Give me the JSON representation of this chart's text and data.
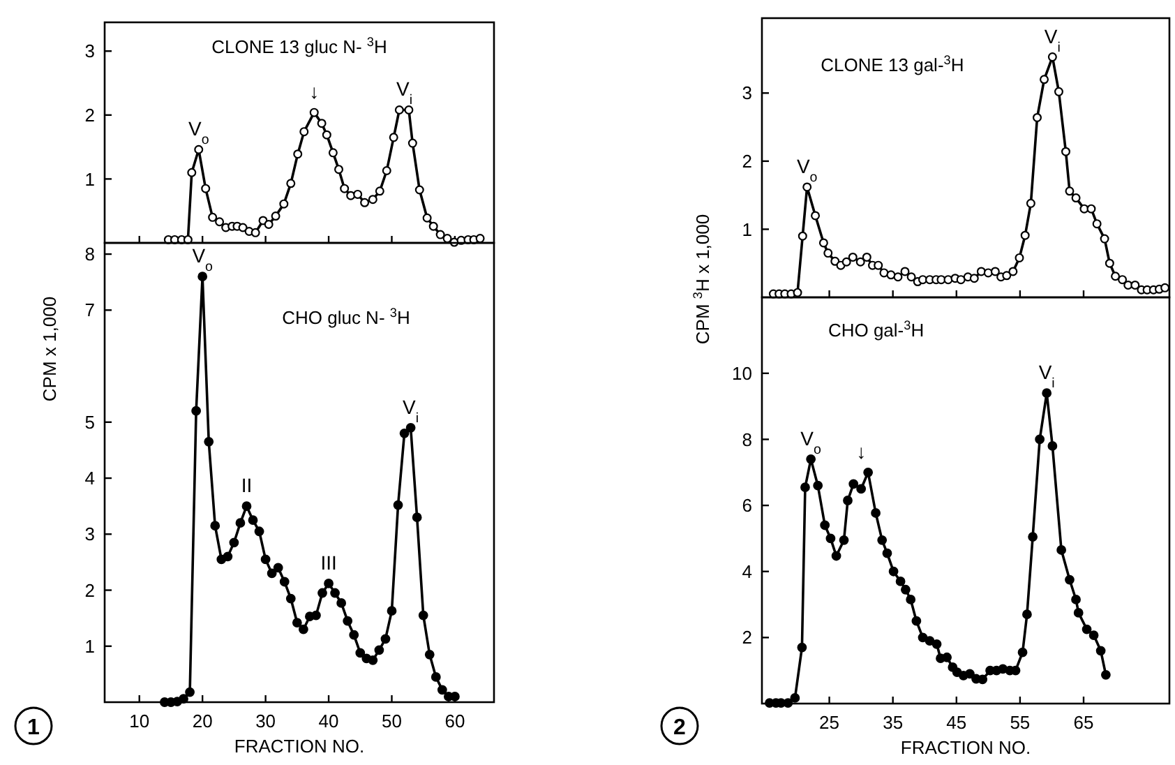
{
  "chart_data": [
    {
      "type": "line",
      "title": "CLONE 13 gluc N- $^{3}$H",
      "marker": "circle",
      "tick_labels": "y",
      "xlim": [
        4.5,
        66.2
      ],
      "xticks": [
        10,
        20,
        30,
        40,
        50,
        60
      ],
      "ylim": [
        0,
        3.45
      ],
      "yticks": [
        1,
        2,
        3
      ],
      "series": [
        {
          "color": "#000000",
          "x": [
            14.6,
            15.6,
            16.7,
            17.7,
            18.3,
            19.4,
            20.5,
            21.6,
            22.7,
            23.7,
            24.7,
            25.5,
            26.4,
            27.4,
            28.4,
            29.6,
            30.5,
            31.6,
            32.9,
            34,
            35.1,
            36.1,
            37.7,
            38.9,
            39.7,
            40.7,
            41.6,
            42.5,
            43.5,
            44.6,
            45.7,
            47,
            48.1,
            49.2,
            50.3,
            51.2,
            52.7,
            53.3,
            54.4,
            55.6,
            56.6,
            57.7,
            58.8,
            59.9,
            61,
            62.1,
            63,
            64
          ],
          "values": [
            0.05,
            0.05,
            0.05,
            0.05,
            1.1,
            1.46,
            0.85,
            0.4,
            0.33,
            0.24,
            0.26,
            0.26,
            0.24,
            0.18,
            0.16,
            0.35,
            0.29,
            0.42,
            0.61,
            0.93,
            1.39,
            1.74,
            2.04,
            1.87,
            1.69,
            1.41,
            1.15,
            0.85,
            0.74,
            0.76,
            0.63,
            0.68,
            0.81,
            1.13,
            1.65,
            2.08,
            2.08,
            1.56,
            0.83,
            0.39,
            0.26,
            0.13,
            0.07,
            0.01,
            0.04,
            0.05,
            0.05,
            0.07
          ]
        }
      ],
      "annotations": [
        {
          "text": "V$_{o}$",
          "x": 19.4,
          "y": 1.46
        },
        {
          "text": "↓",
          "x": 37.7,
          "y": 2.04
        },
        {
          "text": "V$_{i}$",
          "x": 52,
          "y": 2.08
        }
      ]
    },
    {
      "type": "line",
      "title": "CHO gluc N- $^{3}$H",
      "xlabel": "FRACTION NO.",
      "ylabel": "CPM x 1,000",
      "marker": "circle",
      "xlim": [
        4.5,
        66.2
      ],
      "xticks": [
        10,
        20,
        30,
        40,
        50,
        60
      ],
      "ylim": [
        0,
        8.2
      ],
      "yticks": [
        1,
        2,
        3,
        4,
        5,
        7,
        8
      ],
      "series": [
        {
          "color": "#000000",
          "x": [
            14,
            15,
            16,
            17,
            18,
            19,
            20,
            21,
            22,
            23,
            24,
            25,
            26,
            27,
            28,
            29,
            30,
            31,
            32,
            33,
            34,
            35,
            36,
            37,
            38,
            39,
            40,
            41,
            42,
            43,
            44,
            45,
            46,
            47,
            48,
            49,
            50,
            51,
            52,
            53,
            54,
            55,
            56,
            57,
            58,
            59,
            60
          ],
          "values": [
            0,
            0,
            0.01,
            0.06,
            0.18,
            5.2,
            7.6,
            4.65,
            3.15,
            2.55,
            2.6,
            2.85,
            3.2,
            3.5,
            3.25,
            3.05,
            2.55,
            2.3,
            2.4,
            2.15,
            1.85,
            1.42,
            1.3,
            1.53,
            1.55,
            1.95,
            2.12,
            1.95,
            1.77,
            1.45,
            1.2,
            0.88,
            0.78,
            0.75,
            0.93,
            1.13,
            1.63,
            3.52,
            4.8,
            4.9,
            3.3,
            1.55,
            0.85,
            0.45,
            0.22,
            0.1,
            0.1
          ]
        }
      ],
      "annotations": [
        {
          "text": "V$_{o}$",
          "x": 20,
          "y": 7.6
        },
        {
          "text": "II",
          "x": 27,
          "y": 3.5
        },
        {
          "text": "III",
          "x": 40,
          "y": 2.12
        },
        {
          "text": "V$_{i}$",
          "x": 53,
          "y": 4.9
        },
        "1"
      ]
    },
    {
      "type": "line",
      "title": "CLONE 13 gal-$^{3}$H",
      "marker": "circle",
      "tick_labels": "y",
      "xlim": [
        14.4,
        78.5
      ],
      "xticks": [
        25,
        35,
        45,
        55,
        65
      ],
      "ylim": [
        0,
        4.1
      ],
      "yticks": [
        1,
        2,
        3
      ],
      "series": [
        {
          "color": "#000000",
          "x": [
            16.2,
            17.1,
            18,
            19,
            20,
            20.8,
            21.5,
            22.8,
            24.1,
            24.8,
            25.9,
            26.8,
            27.7,
            28.7,
            29.9,
            30.9,
            31.8,
            32.7,
            33.6,
            34.7,
            35.8,
            36.9,
            37.9,
            38.9,
            39.7,
            40.8,
            41.8,
            42.6,
            43.7,
            44.8,
            45.7,
            46.8,
            47.8,
            48.9,
            50,
            51.1,
            52,
            52.9,
            53.9,
            54.9,
            55.8,
            56.7,
            57.7,
            58.8,
            60.1,
            61.1,
            62.2,
            62.8,
            63.8,
            65.1,
            66.2,
            67.1,
            68.3,
            69.1,
            70,
            71.1,
            72,
            73.1,
            74.1,
            75,
            76,
            76.9,
            77.8
          ],
          "values": [
            0.05,
            0.05,
            0.05,
            0.05,
            0.07,
            0.9,
            1.62,
            1.2,
            0.8,
            0.65,
            0.53,
            0.47,
            0.52,
            0.59,
            0.52,
            0.59,
            0.47,
            0.47,
            0.36,
            0.33,
            0.3,
            0.38,
            0.3,
            0.23,
            0.26,
            0.26,
            0.26,
            0.26,
            0.26,
            0.28,
            0.26,
            0.3,
            0.28,
            0.38,
            0.36,
            0.38,
            0.3,
            0.32,
            0.38,
            0.58,
            0.91,
            1.38,
            2.64,
            3.2,
            3.53,
            3.02,
            2.14,
            1.56,
            1.46,
            1.3,
            1.3,
            1.08,
            0.86,
            0.5,
            0.31,
            0.26,
            0.18,
            0.18,
            0.11,
            0.11,
            0.11,
            0.12,
            0.14
          ]
        }
      ],
      "annotations": [
        {
          "text": "V$_{o}$",
          "x": 21.5,
          "y": 1.62
        },
        {
          "text": "V$_{i}$",
          "x": 60.1,
          "y": 3.53
        }
      ]
    },
    {
      "type": "line",
      "title": "CHO gal-$^{3}$H",
      "xlabel": "FRACTION NO.",
      "ylabel": "CPM $^{3}$H x 1,000",
      "marker": "circle",
      "xlim": [
        14.4,
        78.5
      ],
      "xticks": [
        25,
        35,
        45,
        55,
        65
      ],
      "ylim": [
        0,
        12.3
      ],
      "yticks": [
        2,
        4,
        6,
        8,
        10
      ],
      "series": [
        {
          "color": "#000000",
          "x": [
            15.6,
            16.6,
            17.4,
            18.5,
            19.6,
            20.7,
            21.2,
            22.1,
            23.2,
            24.3,
            25.2,
            26.1,
            27.3,
            27.9,
            28.8,
            30,
            31.1,
            32.3,
            33.3,
            34.1,
            35.1,
            36.2,
            37,
            37.8,
            38.7,
            39.7,
            40.8,
            41.9,
            42.5,
            43.5,
            44.4,
            45.1,
            46.1,
            47.1,
            48.1,
            49.1,
            50.3,
            51.3,
            52.3,
            53.4,
            54.3,
            55.4,
            56.1,
            57,
            58.1,
            59.2,
            60.1,
            61.5,
            62.8,
            63.8,
            64.2,
            65.5,
            66.6,
            67.7,
            68.5
          ],
          "values": [
            0.02,
            0.02,
            0.02,
            0.02,
            0.17,
            1.7,
            6.55,
            7.4,
            6.6,
            5.4,
            5,
            4.47,
            4.95,
            6.15,
            6.65,
            6.5,
            7,
            5.77,
            4.95,
            4.55,
            4,
            3.7,
            3.45,
            3.15,
            2.5,
            2,
            1.9,
            1.8,
            1.37,
            1.4,
            1.1,
            0.95,
            0.85,
            0.9,
            0.75,
            0.73,
            1,
            1,
            1.05,
            1,
            1,
            1.55,
            2.7,
            5.05,
            8,
            9.4,
            7.8,
            4.65,
            3.75,
            3.15,
            2.75,
            2.25,
            2.07,
            1.6,
            0.87
          ]
        }
      ],
      "annotations": [
        {
          "text": "V$_{o}$",
          "x": 22.1,
          "y": 7.4
        },
        {
          "text": "↓",
          "x": 30,
          "y": 7
        },
        {
          "text": "V$_{i}$",
          "x": 59.2,
          "y": 9.4
        },
        "2"
      ]
    }
  ]
}
